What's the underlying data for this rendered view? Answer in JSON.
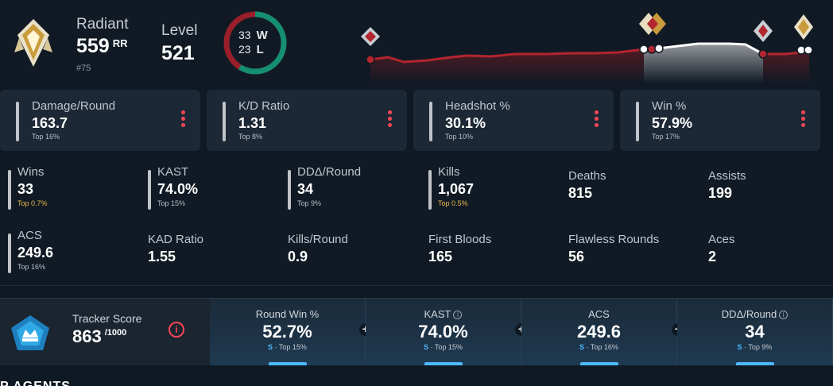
{
  "rank": {
    "name": "Radiant",
    "rr": "559",
    "rr_unit": "RR",
    "position": "#75",
    "icon": "radiant-rank-icon"
  },
  "level": {
    "label": "Level",
    "value": "521"
  },
  "record": {
    "wins": "33",
    "wins_label": "W",
    "losses": "23",
    "losses_label": "L",
    "win_color": "#148f6f",
    "loss_color": "#9a1f2b"
  },
  "rr_history": {
    "line_color": "#b3252f",
    "highlight_color": "#ffffff"
  },
  "cards": [
    {
      "label": "Damage/Round",
      "value": "163.7",
      "pct": "Top 16%"
    },
    {
      "label": "K/D Ratio",
      "value": "1.31",
      "pct": "Top 8%"
    },
    {
      "label": "Headshot %",
      "value": "30.1%",
      "pct": "Top 10%"
    },
    {
      "label": "Win %",
      "value": "57.9%",
      "pct": "Top 17%"
    }
  ],
  "stats": [
    {
      "label": "Wins",
      "value": "33",
      "pct": "Top 0.7%"
    },
    {
      "label": "KAST",
      "value": "74.0%",
      "pct": "Top 15%"
    },
    {
      "label": "DDΔ/Round",
      "value": "34",
      "pct": "Top 9%"
    },
    {
      "label": "Kills",
      "value": "1,067",
      "pct": "Top 0.5%"
    },
    {
      "label": "Deaths",
      "value": "815"
    },
    {
      "label": "Assists",
      "value": "199"
    },
    {
      "label": "ACS",
      "value": "249.6",
      "pct": "Top 16%"
    },
    {
      "label": "KAD Ratio",
      "value": "1.55"
    },
    {
      "label": "Kills/Round",
      "value": "0.9"
    },
    {
      "label": "First Bloods",
      "value": "165"
    },
    {
      "label": "Flawless Rounds",
      "value": "56"
    },
    {
      "label": "Aces",
      "value": "2"
    }
  ],
  "tracker": {
    "label": "Tracker Score",
    "value": "863",
    "max": "/1000",
    "info_icon": "i",
    "panels": [
      {
        "label": "Round Win %",
        "value": "52.7%",
        "grade": "S",
        "pct": "· Top 15%"
      },
      {
        "label": "KAST",
        "value": "74.0%",
        "grade": "S",
        "pct": "· Top 15%"
      },
      {
        "label": "ACS",
        "value": "249.6",
        "grade": "S",
        "pct": "· Top 16%"
      },
      {
        "label": "DDΔ/Round",
        "value": "34",
        "grade": "S",
        "pct": "· Top 9%"
      }
    ]
  },
  "agents_heading": "P AGENTS"
}
